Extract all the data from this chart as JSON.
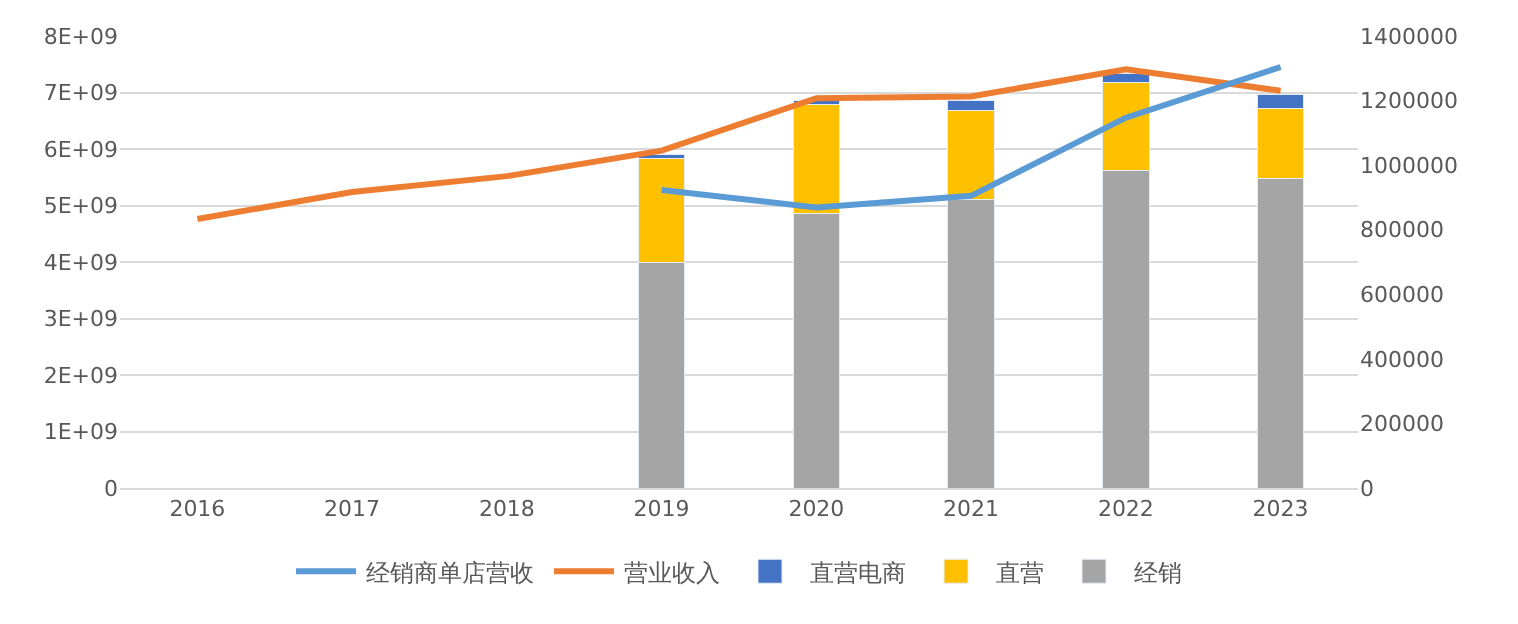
{
  "chart_data": {
    "type": "bar",
    "stacked": true,
    "categories": [
      "2016",
      "2017",
      "2018",
      "2019",
      "2020",
      "2021",
      "2022",
      "2023"
    ],
    "series": [
      {
        "name": "经销",
        "color": "#a5a5a5",
        "values": [
          null,
          null,
          null,
          4000000000.0,
          4860000000.0,
          5100000000.0,
          5620000000.0,
          5480000000.0
        ]
      },
      {
        "name": "直营",
        "color": "#ffc000",
        "values": [
          null,
          null,
          null,
          1830000000.0,
          1930000000.0,
          1590000000.0,
          1550000000.0,
          1240000000.0
        ]
      },
      {
        "name": "直营电商",
        "color": "#4472c4",
        "values": [
          null,
          null,
          null,
          80000000.0,
          70000000.0,
          170000000.0,
          170000000.0,
          250000000.0
        ]
      },
      {
        "name": "营业收入",
        "type": "line",
        "color": "#ed7d31",
        "values": [
          4760000000.0,
          5240000000.0,
          5520000000.0,
          5970000000.0,
          6900000000.0,
          6930000000.0,
          7410000000.0,
          7030000000.0
        ]
      },
      {
        "name": "经销商单店营收",
        "type": "line",
        "axis": "y2",
        "color": "#5b9bd5",
        "values": [
          null,
          null,
          null,
          923000,
          869000,
          905000,
          1147000,
          1304000
        ]
      }
    ],
    "ylim": [
      0,
      8000000000.0
    ],
    "yticks": [
      0,
      {
        "value": 1000000000.0,
        "label": "1E+09"
      },
      {
        "value": 2000000000.0,
        "label": "2E+09"
      },
      {
        "value": 3000000000.0,
        "label": "3E+09"
      },
      {
        "value": 4000000000.0,
        "label": "4E+09"
      },
      {
        "value": 5000000000.0,
        "label": "5E+09"
      },
      {
        "value": 6000000000.0,
        "label": "6E+09"
      },
      {
        "value": 7000000000.0,
        "label": "7E+09"
      },
      {
        "value": 8000000000.0,
        "label": "8E+09"
      }
    ],
    "y2lim": [
      0,
      1400000
    ],
    "y2ticks": [
      0,
      200000,
      400000,
      600000,
      800000,
      1000000,
      1200000,
      1400000
    ],
    "grid": "y",
    "legend": "bottom",
    "marker": "none",
    "line_style": "solid"
  }
}
